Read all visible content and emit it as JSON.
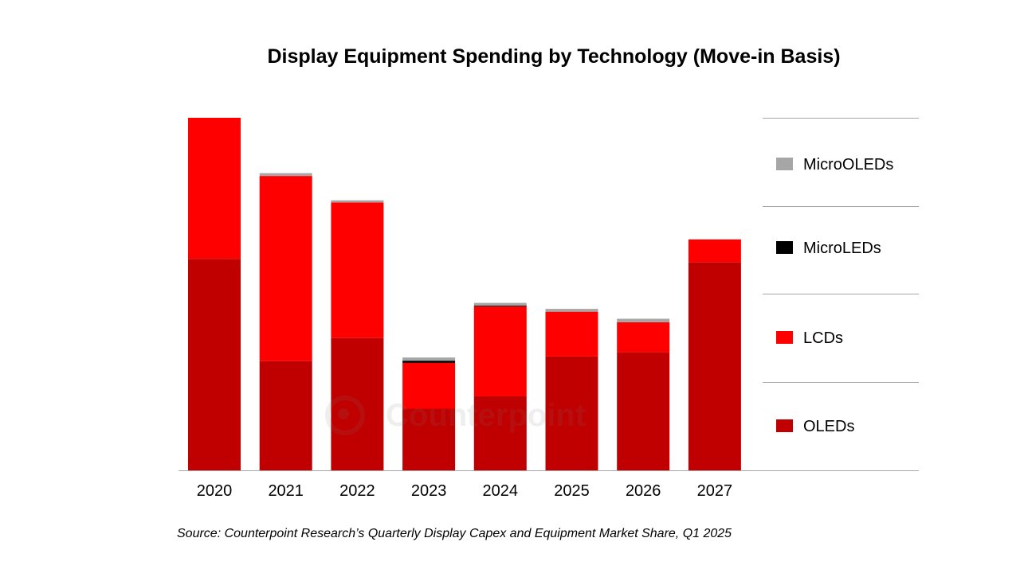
{
  "colors": {
    "OLEDs": "#c00000",
    "LCDs": "#ff0000",
    "MicroLEDs": "#000000",
    "MicroOLEDs": "#a6a6a6",
    "axis": "#a6a6a6"
  },
  "chart_data": {
    "type": "bar",
    "stacked": true,
    "title": "Display Equipment Spending by Technology (Move-in Basis)",
    "xlabel": "",
    "ylabel": "",
    "grid": false,
    "legend_position": "right",
    "categories": [
      "2020",
      "2021",
      "2022",
      "2023",
      "2024",
      "2025",
      "2026",
      "2027"
    ],
    "ylim": [
      0,
      100
    ],
    "series": [
      {
        "name": "OLEDs",
        "values": [
          60,
          31,
          37.5,
          17.5,
          21,
          32.3,
          33.5,
          59
        ]
      },
      {
        "name": "LCDs",
        "values": [
          40,
          52.5,
          38.5,
          13,
          25.5,
          12.7,
          8.5,
          6.5
        ]
      },
      {
        "name": "MicroLEDs",
        "values": [
          0,
          0,
          0,
          0.6,
          0.2,
          0,
          0,
          0
        ]
      },
      {
        "name": "MicroOLEDs",
        "values": [
          0,
          0.8,
          0.6,
          0.9,
          0.8,
          0.8,
          1.0,
          0
        ]
      }
    ],
    "legend_order": [
      "MicroOLEDs",
      "MicroLEDs",
      "LCDs",
      "OLEDs"
    ]
  },
  "watermark": {
    "text": "Counterpoint"
  },
  "source": "Source: Counterpoint Research’s Quarterly Display Capex and Equipment Market Share, Q1 2025"
}
